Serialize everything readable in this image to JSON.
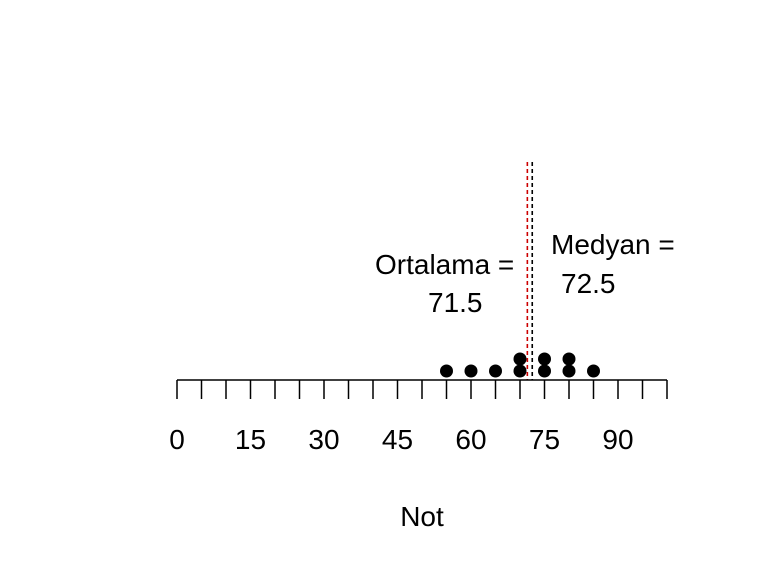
{
  "chart_data": {
    "type": "scatter",
    "subtype": "dot-plot",
    "title": "",
    "xlabel": "Not",
    "ylabel": "",
    "xlim": [
      0,
      100
    ],
    "x_ticks": [
      0,
      5,
      10,
      15,
      20,
      25,
      30,
      35,
      40,
      45,
      50,
      55,
      60,
      65,
      70,
      75,
      80,
      85,
      90,
      95,
      100
    ],
    "x_tick_labels": [
      0,
      15,
      30,
      45,
      60,
      75,
      90
    ],
    "grid": false,
    "points": [
      {
        "x": 55,
        "count": 1
      },
      {
        "x": 60,
        "count": 1
      },
      {
        "x": 65,
        "count": 1
      },
      {
        "x": 70,
        "count": 2
      },
      {
        "x": 75,
        "count": 2
      },
      {
        "x": 80,
        "count": 2
      },
      {
        "x": 85,
        "count": 1
      }
    ],
    "reference_lines": [
      {
        "label": "Ortalama = ",
        "value_text": "71.5",
        "x": 71.5,
        "color": "#cc0000",
        "style": "dashed"
      },
      {
        "label": "Medyan = ",
        "value_text": "72.5",
        "x": 72.5,
        "color": "#000000",
        "style": "dashed"
      }
    ]
  }
}
